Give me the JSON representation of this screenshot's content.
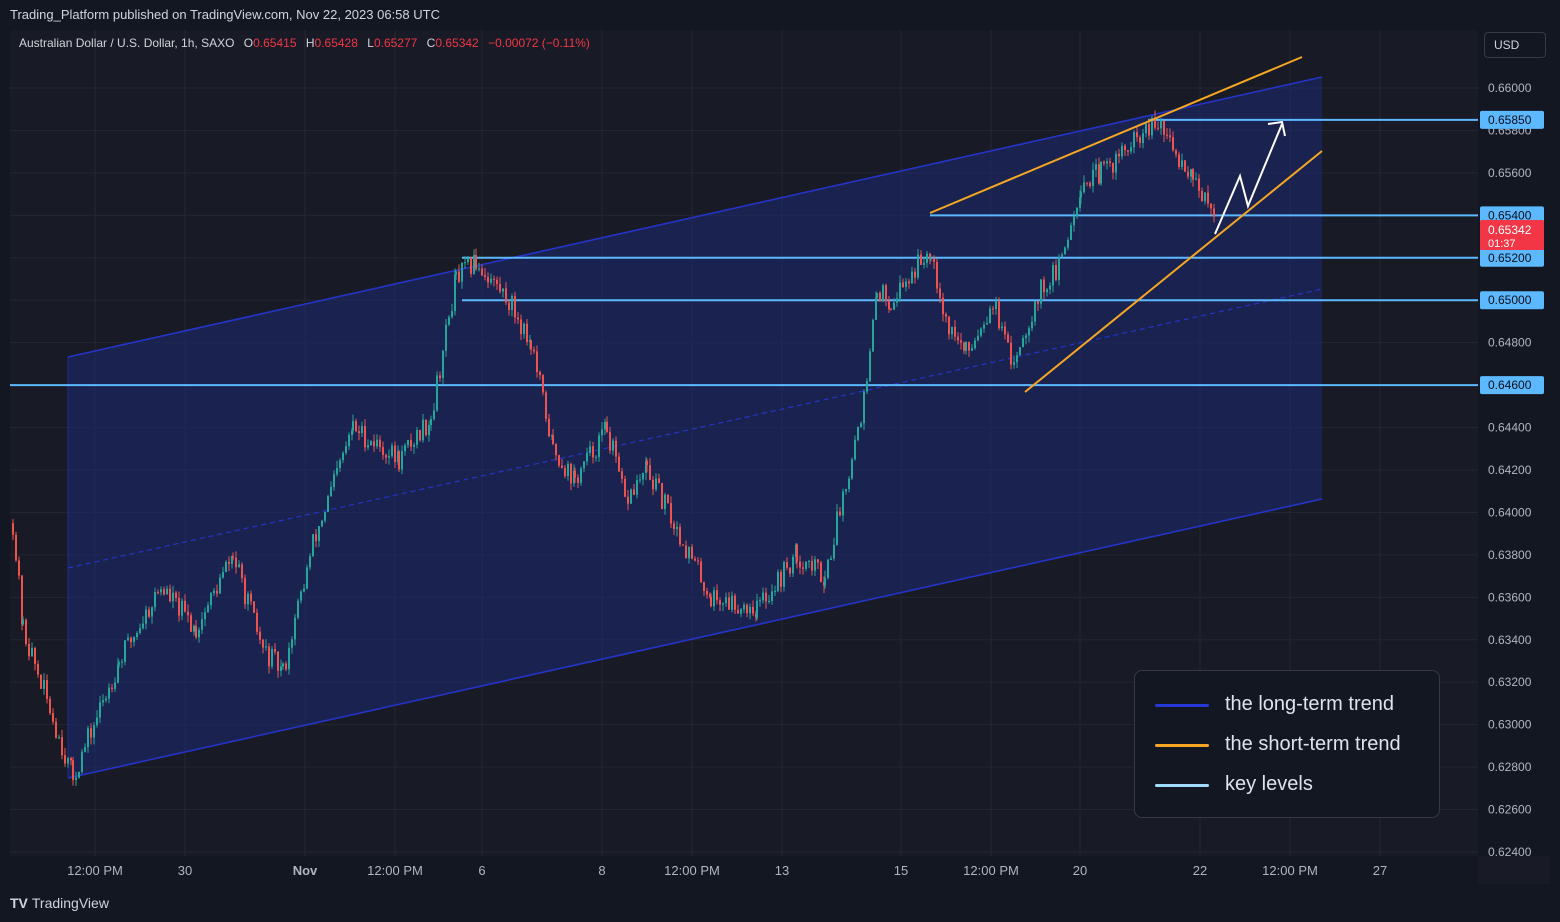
{
  "header": {
    "published_text": "Trading_Platform published on TradingView.com, Nov 22, 2023 06:58 UTC"
  },
  "symbol": {
    "name": "Australian Dollar / U.S. Dollar, 1h, SAXO",
    "o_label": "O",
    "o": "0.65415",
    "h_label": "H",
    "h": "0.65428",
    "l_label": "L",
    "l": "0.65277",
    "c_label": "C",
    "c": "0.65342",
    "change": "−0.00072 (−0.11%)"
  },
  "currency_button": "USD",
  "footer": {
    "brand": "TradingView"
  },
  "colors": {
    "background": "#131722",
    "chart_bg": "#181b25",
    "bull": "#26a69a",
    "bear": "#ef5350",
    "long_term": "#2434c8",
    "short_term": "#f5a623",
    "key_level": "#5cb8ff",
    "last_price": "#f23645"
  },
  "legend": [
    {
      "label": "the long-term trend",
      "color": "#2639d6"
    },
    {
      "label": "the short-term trend",
      "color": "#f5a623"
    },
    {
      "label": "key levels",
      "color": "#9fdcff"
    }
  ],
  "chart_data": {
    "type": "candlestick",
    "title": "Australian Dollar / U.S. Dollar, 1h, SAXO",
    "ylim": [
      0.624,
      0.662
    ],
    "y_ticks": [
      "0.66000",
      "0.65800",
      "0.65600",
      "0.65400",
      "0.65200",
      "0.65000",
      "0.64800",
      "0.64600",
      "0.64400",
      "0.64200",
      "0.64000",
      "0.63800",
      "0.63600",
      "0.63400",
      "0.63200",
      "0.63000",
      "0.62800",
      "0.62600",
      "0.62400"
    ],
    "x_ticks": [
      "12:00 PM",
      "30",
      "Nov",
      "12:00 PM",
      "6",
      "8",
      "12:00 PM",
      "13",
      "15",
      "12:00 PM",
      "20",
      "22",
      "12:00 PM",
      "27"
    ],
    "key_levels": [
      "0.65850",
      "0.65400",
      "0.65200",
      "0.65000",
      "0.64600"
    ],
    "last_price": {
      "value": "0.65342",
      "countdown": "01:37"
    },
    "price_path": [
      {
        "x": "Oct 27",
        "y": 0.6395
      },
      {
        "x": "Oct 27",
        "y": 0.6345
      },
      {
        "x": "Oct 27",
        "y": 0.6275
      },
      {
        "x": "Oct 30",
        "y": 0.633
      },
      {
        "x": "Oct 30",
        "y": 0.6365
      },
      {
        "x": "Oct 30",
        "y": 0.6345
      },
      {
        "x": "Oct 31",
        "y": 0.638
      },
      {
        "x": "Oct 31",
        "y": 0.6335
      },
      {
        "x": "Nov 1",
        "y": 0.6325
      },
      {
        "x": "Nov 2",
        "y": 0.6385
      },
      {
        "x": "Nov 2",
        "y": 0.644
      },
      {
        "x": "Nov 3",
        "y": 0.6425
      },
      {
        "x": "Nov 3",
        "y": 0.6445
      },
      {
        "x": "Nov 6",
        "y": 0.651
      },
      {
        "x": "Nov 6",
        "y": 0.6518
      },
      {
        "x": "Nov 7",
        "y": 0.65
      },
      {
        "x": "Nov 7",
        "y": 0.648
      },
      {
        "x": "Nov 7",
        "y": 0.643
      },
      {
        "x": "Nov 8",
        "y": 0.6415
      },
      {
        "x": "Nov 8",
        "y": 0.644
      },
      {
        "x": "Nov 9",
        "y": 0.6405
      },
      {
        "x": "Nov 9",
        "y": 0.642
      },
      {
        "x": "Nov 10",
        "y": 0.636
      },
      {
        "x": "Nov 13",
        "y": 0.6355
      },
      {
        "x": "Nov 13",
        "y": 0.638
      },
      {
        "x": "Nov 14",
        "y": 0.637
      },
      {
        "x": "Nov 14",
        "y": 0.646
      },
      {
        "x": "Nov 14",
        "y": 0.6505
      },
      {
        "x": "Nov 15",
        "y": 0.65
      },
      {
        "x": "Nov 15",
        "y": 0.6525
      },
      {
        "x": "Nov 16",
        "y": 0.649
      },
      {
        "x": "Nov 16",
        "y": 0.6475
      },
      {
        "x": "Nov 16",
        "y": 0.65
      },
      {
        "x": "Nov 17",
        "y": 0.647
      },
      {
        "x": "Nov 17",
        "y": 0.6505
      },
      {
        "x": "Nov 20",
        "y": 0.6515
      },
      {
        "x": "Nov 20",
        "y": 0.6555
      },
      {
        "x": "Nov 20",
        "y": 0.656
      },
      {
        "x": "Nov 21",
        "y": 0.658
      },
      {
        "x": "Nov 21",
        "y": 0.6582
      },
      {
        "x": "Nov 21",
        "y": 0.657
      },
      {
        "x": "Nov 22",
        "y": 0.656
      },
      {
        "x": "Nov 22",
        "y": 0.6534
      }
    ],
    "trend_lines": {
      "long_term_channel": {
        "upper": [
          [
            "Oct 27",
            0.6472
          ],
          [
            "Nov 27",
            0.6604
          ]
        ],
        "lower": [
          [
            "Oct 27",
            0.6275
          ],
          [
            "Nov 27",
            0.6405
          ]
        ]
      },
      "short_term_channel": {
        "upper": [
          [
            "Nov 15",
            0.654
          ],
          [
            "Nov 27",
            0.6612
          ]
        ],
        "lower": [
          [
            "Nov 17",
            0.6457
          ],
          [
            "Nov 27",
            0.6569
          ]
        ]
      }
    },
    "grid": true,
    "legend_position": "bottom-right"
  }
}
